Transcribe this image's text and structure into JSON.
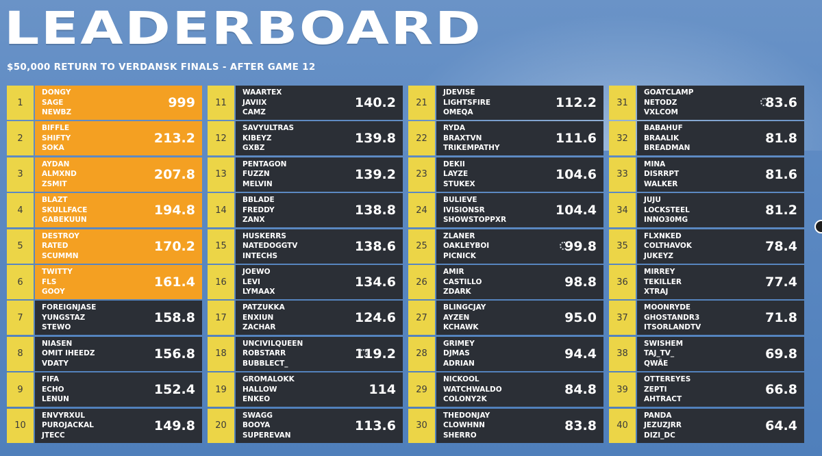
{
  "title": "LEADERBOARD",
  "subtitle": "$50,000 RETURN TO VERDANSK FINALS  -  AFTER GAME 12",
  "colors": {
    "top_card": "#f4a022",
    "card": "#2b2f36",
    "rank_bg": "#ecd547"
  },
  "columns": [
    [
      {
        "rank": "1",
        "players": [
          "DONGY",
          "SAGE",
          "NEWBZ"
        ],
        "score": "999"
      },
      {
        "rank": "2",
        "players": [
          "BIFFLE",
          "SHIFTY",
          "SOKA"
        ],
        "score": "213.2"
      },
      {
        "rank": "3",
        "players": [
          "AYDAN",
          "ALMXND",
          "ZSMIT"
        ],
        "score": "207.8"
      },
      {
        "rank": "4",
        "players": [
          "BLAZT",
          "SKULLFACE",
          "GABEKUUN"
        ],
        "score": "194.8"
      },
      {
        "rank": "5",
        "players": [
          "DESTROY",
          "RATED",
          "SCUMMN"
        ],
        "score": "170.2"
      },
      {
        "rank": "6",
        "players": [
          "TWITTY",
          "FLS",
          "GOOY"
        ],
        "score": "161.4"
      },
      {
        "rank": "7",
        "players": [
          "FOREIGNJASE",
          "YUNGSTAZ",
          "STEWO"
        ],
        "score": "158.8"
      },
      {
        "rank": "8",
        "players": [
          "NIASEN",
          "OMIT IHEEDZ",
          "VDATY"
        ],
        "score": "156.8"
      },
      {
        "rank": "9",
        "players": [
          "FIFA",
          "ECHO",
          "LENUN"
        ],
        "score": "152.4"
      },
      {
        "rank": "10",
        "players": [
          "ENVYRXUL",
          "PUROJACKAL",
          "JTECC"
        ],
        "score": "149.8"
      }
    ],
    [
      {
        "rank": "11",
        "players": [
          "WAARTEX",
          "JAVIIX",
          "CAMZ"
        ],
        "score": "140.2"
      },
      {
        "rank": "12",
        "players": [
          "SAVYULTRAS",
          "KIBEYZ",
          "GXBZ"
        ],
        "score": "139.8"
      },
      {
        "rank": "13",
        "players": [
          "PENTAGON",
          "FUZZN",
          "MELVIN"
        ],
        "score": "139.2"
      },
      {
        "rank": "14",
        "players": [
          "BBLADE",
          "FREDDY",
          "ZANX"
        ],
        "score": "138.8"
      },
      {
        "rank": "15",
        "players": [
          "HUSKERRS",
          "NATEDOGGTV",
          "INTECHS"
        ],
        "score": "138.6"
      },
      {
        "rank": "16",
        "players": [
          "JOEWO",
          "LEVI",
          "LYMAAX"
        ],
        "score": "134.6"
      },
      {
        "rank": "17",
        "players": [
          "PATZUKKA",
          "ENXIUN",
          "ZACHAR"
        ],
        "score": "124.6"
      },
      {
        "rank": "18",
        "players": [
          "UNCIVILQUEEN",
          "ROBSTARR",
          "BUBBLECT_"
        ],
        "score": "119.2",
        "spinner": true
      },
      {
        "rank": "19",
        "players": [
          "GROMALOKK",
          "HALLOW",
          "ENKEO"
        ],
        "score": "114"
      },
      {
        "rank": "20",
        "players": [
          "SWAGG",
          "BOOYA",
          "SUPEREVAN"
        ],
        "score": "113.6"
      }
    ],
    [
      {
        "rank": "21",
        "players": [
          "JDEVISE",
          "LIGHTSFIRE",
          "OMEQA"
        ],
        "score": "112.2"
      },
      {
        "rank": "22",
        "players": [
          "RYDA",
          "BRAXTVN",
          "TRIKEMPATHY"
        ],
        "score": "111.6"
      },
      {
        "rank": "23",
        "players": [
          "DEKII",
          "LAYZE",
          "STUKEX"
        ],
        "score": "104.6"
      },
      {
        "rank": "24",
        "players": [
          "BULIEVE",
          "IVISIONSR",
          "SHOWSTOPPXR"
        ],
        "score": "104.4"
      },
      {
        "rank": "25",
        "players": [
          "ZLANER",
          "OAKLEYBOI",
          "PICNICK"
        ],
        "score": "99.8",
        "spinner": true
      },
      {
        "rank": "26",
        "players": [
          "AMIR",
          "CASTILLO",
          "ZDARK"
        ],
        "score": "98.8"
      },
      {
        "rank": "27",
        "players": [
          "BLINGCJAY",
          "AYZEN",
          "KCHAWK"
        ],
        "score": "95.0"
      },
      {
        "rank": "28",
        "players": [
          "GRIMEY",
          "DJMAS",
          "ADRIAN"
        ],
        "score": "94.4"
      },
      {
        "rank": "29",
        "players": [
          "NICKOOL",
          "WATCHWALDO",
          "COLONY2K"
        ],
        "score": "84.8"
      },
      {
        "rank": "30",
        "players": [
          "THEDONJAY",
          "CLOWHNN",
          "SHERRO"
        ],
        "score": "83.8"
      }
    ],
    [
      {
        "rank": "31",
        "players": [
          "GOATCLAMP",
          "NETODZ",
          "VXLCOM"
        ],
        "score": "83.6",
        "spinner": true
      },
      {
        "rank": "32",
        "players": [
          "BABAHUF",
          "BRAALIK",
          "BREADMAN"
        ],
        "score": "81.8"
      },
      {
        "rank": "33",
        "players": [
          "MINA",
          "DISRRPT",
          "WALKER"
        ],
        "score": "81.6"
      },
      {
        "rank": "34",
        "players": [
          "JUJU",
          "LOCKSTEEL",
          "INNO30MG"
        ],
        "score": "81.2"
      },
      {
        "rank": "35",
        "players": [
          "FLXNKED",
          "COLTHAVOK",
          "JUKEYZ"
        ],
        "score": "78.4"
      },
      {
        "rank": "36",
        "players": [
          "MIRREY",
          "TEKILLER",
          "XTRAJ"
        ],
        "score": "77.4"
      },
      {
        "rank": "37",
        "players": [
          "MOONRYDE",
          "GHOSTANDR3",
          "ITSORLANDTV"
        ],
        "score": "71.8"
      },
      {
        "rank": "38",
        "players": [
          "SWISHEM",
          "TAJ_TV_",
          "QWÄE"
        ],
        "score": "69.8"
      },
      {
        "rank": "39",
        "players": [
          "OTTEREYES",
          "ZEPTI",
          "AHTRACT"
        ],
        "score": "66.8"
      },
      {
        "rank": "40",
        "players": [
          "PANDA",
          "JEZUZJRR",
          "DIZI_DC"
        ],
        "score": "64.4"
      }
    ]
  ]
}
